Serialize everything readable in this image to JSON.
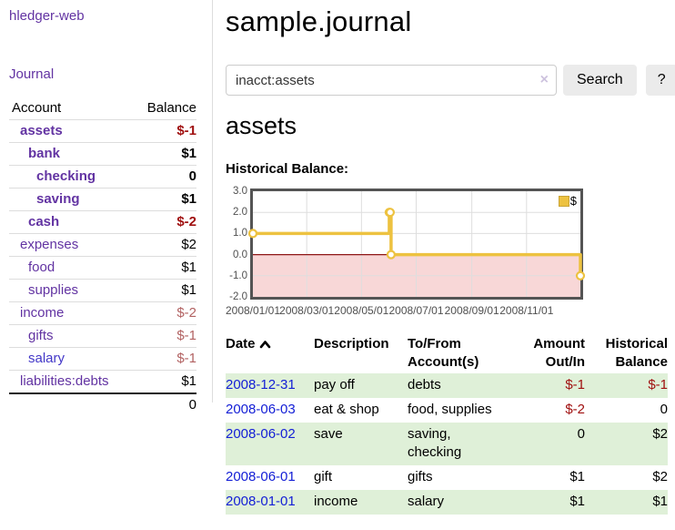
{
  "colors": {
    "link_purple": "#6233a2",
    "link_blue": "#4338c8",
    "date_link_blue": "#1520d6",
    "negative_strong": "#a01010",
    "negative_muted": "#b26262",
    "row_highlight_green": "#dff0d8",
    "chart_line_gold": "#edc240",
    "chart_negative_fill": "#f8d7d7",
    "chart_zero_line": "#8e1717",
    "chart_border_gray": "#545454",
    "button_gray": "#ebebeb"
  },
  "sidebar": {
    "app_title": "hledger-web",
    "journal_link": "Journal",
    "accounts_table": {
      "account_header": "Account",
      "balance_header": "Balance",
      "rows": [
        {
          "name": "assets",
          "balance": "$-1",
          "depth": 0,
          "emphasized": true,
          "balance_class": "neg-strong",
          "link_class": ""
        },
        {
          "name": "bank",
          "balance": "$1",
          "depth": 1,
          "emphasized": true,
          "balance_class": "",
          "link_class": ""
        },
        {
          "name": "checking",
          "balance": "0",
          "depth": 2,
          "emphasized": true,
          "balance_class": "",
          "link_class": ""
        },
        {
          "name": "saving",
          "balance": "$1",
          "depth": 2,
          "emphasized": true,
          "balance_class": "",
          "link_class": ""
        },
        {
          "name": "cash",
          "balance": "$-2",
          "depth": 1,
          "emphasized": true,
          "balance_class": "neg-strong",
          "link_class": ""
        },
        {
          "name": "expenses",
          "balance": "$2",
          "depth": 0,
          "emphasized": false,
          "balance_class": "",
          "link_class": ""
        },
        {
          "name": "food",
          "balance": "$1",
          "depth": 1,
          "emphasized": false,
          "balance_class": "",
          "link_class": ""
        },
        {
          "name": "supplies",
          "balance": "$1",
          "depth": 1,
          "emphasized": false,
          "balance_class": "",
          "link_class": ""
        },
        {
          "name": "income",
          "balance": "$-2",
          "depth": 0,
          "emphasized": false,
          "balance_class": "neg-muted",
          "link_class": ""
        },
        {
          "name": "gifts",
          "balance": "$-1",
          "depth": 1,
          "emphasized": false,
          "balance_class": "neg-muted",
          "link_class": ""
        },
        {
          "name": "salary",
          "balance": "$-1",
          "depth": 1,
          "emphasized": false,
          "balance_class": "neg-muted",
          "link_class": "blue"
        },
        {
          "name": "liabilities:debts",
          "balance": "$1",
          "depth": 0,
          "emphasized": false,
          "balance_class": "",
          "link_class": ""
        }
      ],
      "total": "0"
    }
  },
  "main": {
    "title": "sample.journal",
    "search": {
      "query": "inacct:assets",
      "clear_icon": "×",
      "button_label": "Search",
      "help_label": "?"
    },
    "account_heading": "assets",
    "chart_heading": "Historical Balance:"
  },
  "chart_data": {
    "type": "line",
    "step": true,
    "title": "Historical Balance",
    "series": [
      {
        "name": "$",
        "color": "#edc240",
        "points": [
          {
            "date": "2008-01-01",
            "value": 1
          },
          {
            "date": "2008-06-01",
            "value": 2
          },
          {
            "date": "2008-06-02",
            "value": 2
          },
          {
            "date": "2008-06-03",
            "value": 0
          },
          {
            "date": "2008-12-31",
            "value": -1
          }
        ]
      }
    ],
    "x_range": [
      "2008-01-01",
      "2008-12-31"
    ],
    "ylim": [
      -2,
      3
    ],
    "yticks": [
      "3.0",
      "2.0",
      "1.0",
      "0.0",
      "-1.0",
      "-2.0"
    ],
    "xticks": [
      "2008/01/01",
      "2008/03/01",
      "2008/05/01",
      "2008/07/01",
      "2008/09/01",
      "2008/11/01"
    ],
    "legend": {
      "label": "$",
      "position": "top-right"
    },
    "grid": true,
    "negative_region_shaded": true
  },
  "register_table": {
    "headers": {
      "date": "Date",
      "description": "Description",
      "accounts_lines": [
        "To/From",
        "Account(s)"
      ],
      "amount_lines": [
        "Amount",
        "Out/In"
      ],
      "balance_lines": [
        "Historical",
        "Balance"
      ],
      "sort_order": "ascending"
    },
    "rows": [
      {
        "date": "2008-12-31",
        "description": "pay off",
        "accounts_lines": [
          "debts"
        ],
        "amount": "$-1",
        "balance": "$-1",
        "highlight": true
      },
      {
        "date": "2008-06-03",
        "description": "eat & shop",
        "accounts_lines": [
          "food, supplies"
        ],
        "amount": "$-2",
        "balance": "0",
        "highlight": false
      },
      {
        "date": "2008-06-02",
        "description": "save",
        "accounts_lines": [
          "saving,",
          "checking"
        ],
        "amount": "0",
        "balance": "$2",
        "highlight": true
      },
      {
        "date": "2008-06-01",
        "description": "gift",
        "accounts_lines": [
          "gifts"
        ],
        "amount": "$1",
        "balance": "$2",
        "highlight": false
      },
      {
        "date": "2008-01-01",
        "description": "income",
        "accounts_lines": [
          "salary"
        ],
        "amount": "$1",
        "balance": "$1",
        "highlight": true
      }
    ]
  }
}
